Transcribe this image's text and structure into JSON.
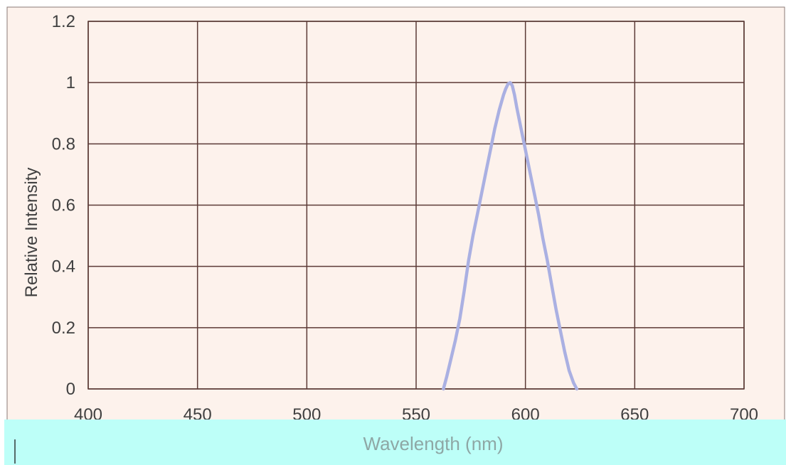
{
  "chart_data": {
    "type": "line",
    "title": "",
    "xlabel": "Wavelength (nm)",
    "ylabel": "Relative Intensity",
    "xlim": [
      400,
      700
    ],
    "ylim": [
      0,
      1.2
    ],
    "x_ticks": [
      400,
      450,
      500,
      550,
      600,
      650,
      700
    ],
    "y_ticks": [
      0,
      0.2,
      0.4,
      0.6,
      0.8,
      1,
      1.2
    ],
    "x_tick_labels": [
      "400",
      "450",
      "500",
      "550",
      "600",
      "650",
      "700"
    ],
    "y_tick_labels": [
      "0",
      "0.2",
      "0.4",
      "0.6",
      "0.8",
      "1",
      "1.2"
    ],
    "grid": true,
    "legend": "none",
    "series": [
      {
        "color": "#aab0e2",
        "x": [
          562.5,
          564,
          566,
          568,
          570,
          572,
          574,
          576,
          578,
          580,
          582,
          584,
          586,
          588,
          590,
          591,
          592,
          593,
          594,
          595,
          596,
          598,
          600,
          602,
          604,
          606,
          608,
          610,
          612,
          614,
          616,
          618,
          620,
          622,
          623.5
        ],
        "y": [
          0.0,
          0.04,
          0.1,
          0.16,
          0.23,
          0.32,
          0.42,
          0.5,
          0.57,
          0.64,
          0.71,
          0.78,
          0.85,
          0.91,
          0.96,
          0.98,
          0.995,
          1.0,
          0.99,
          0.96,
          0.92,
          0.85,
          0.78,
          0.71,
          0.64,
          0.57,
          0.49,
          0.42,
          0.34,
          0.26,
          0.19,
          0.12,
          0.06,
          0.02,
          0.0
        ]
      }
    ]
  },
  "colors": {
    "plot_background": "#fdf2ec",
    "grid_lines": "#5b3a36",
    "series_line": "#aab0e2",
    "text": "#404040",
    "bottom_band": "#bdfff8",
    "band_text": "#8ea7a5"
  }
}
